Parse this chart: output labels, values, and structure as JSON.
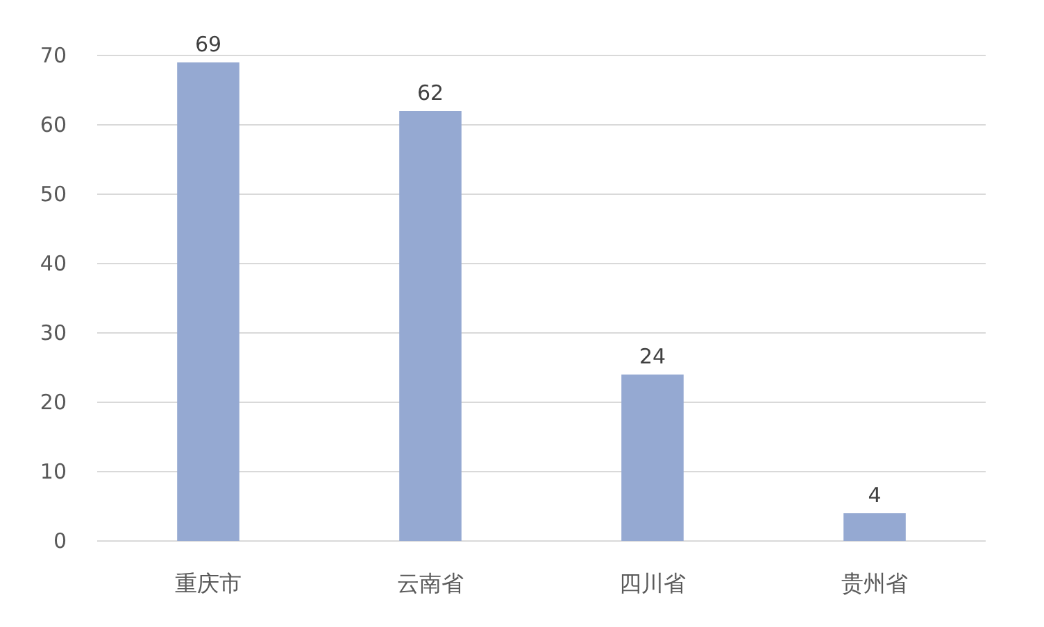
{
  "chart_data": {
    "type": "bar",
    "categories": [
      "重庆市",
      "云南省",
      "四川省",
      "贵州省"
    ],
    "values": [
      69,
      62,
      24,
      4
    ],
    "color": "#95a9d2",
    "ylim": [
      0,
      70
    ],
    "yticks": [
      0,
      10,
      20,
      30,
      40,
      50,
      60,
      70
    ],
    "grid": "y",
    "data_labels": true
  }
}
